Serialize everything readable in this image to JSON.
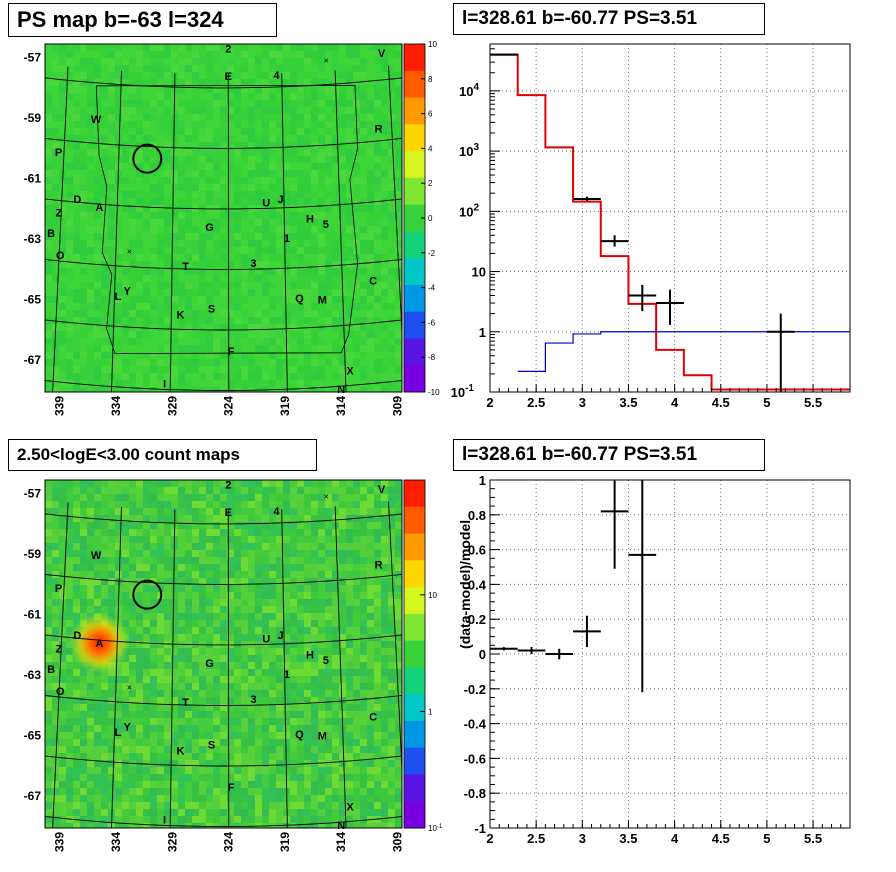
{
  "titles": {
    "map_top": "PS map b=-63 l=324",
    "spectrum_top": "l=328.61 b=-60.77 PS=3.51",
    "map_bottom": "2.50<logE<3.00 count maps",
    "spectrum_bottom": "l=328.61 b=-60.77 PS=3.51"
  },
  "colors": {
    "map_background_top": "#36d236",
    "map_background_bottom": "#3ec83e",
    "data_color": "#000000",
    "model_color": "#e00000",
    "background_model_color": "#0000cc"
  },
  "maps": {
    "y_ticks": [
      "-57",
      "-59",
      "-61",
      "-63",
      "-65",
      "-67"
    ],
    "x_ticks": [
      "339",
      "334",
      "329",
      "324",
      "319",
      "314",
      "309"
    ],
    "source_labels": [
      {
        "t": "2",
        "lon": 324,
        "lat": -56.7
      },
      {
        "t": "E",
        "lon": 324,
        "lat": -57.6
      },
      {
        "t": "4",
        "lon": 319.5,
        "lat": -57.6
      },
      {
        "t": "V",
        "lon": 309.6,
        "lat": -57.1
      },
      {
        "t": "W",
        "lon": 336.2,
        "lat": -59.2
      },
      {
        "t": "R",
        "lon": 310.2,
        "lat": -59.6
      },
      {
        "t": "P",
        "lon": 339.5,
        "lat": -60.4
      },
      {
        "t": "D",
        "lon": 337.6,
        "lat": -61.9
      },
      {
        "t": "A",
        "lon": 335.6,
        "lat": -62.1
      },
      {
        "t": "U",
        "lon": 320.6,
        "lat": -61.8
      },
      {
        "t": "J",
        "lon": 319.3,
        "lat": -61.7
      },
      {
        "t": "Z",
        "lon": 339.2,
        "lat": -62.4
      },
      {
        "t": "G",
        "lon": 325.7,
        "lat": -62.6
      },
      {
        "t": "H",
        "lon": 316.7,
        "lat": -62.4
      },
      {
        "t": "5",
        "lon": 315.3,
        "lat": -62.6
      },
      {
        "t": "1",
        "lon": 318.8,
        "lat": -63.0
      },
      {
        "t": "B",
        "lon": 339.8,
        "lat": -63.1
      },
      {
        "t": "O",
        "lon": 338.9,
        "lat": -63.8
      },
      {
        "t": "T",
        "lon": 327.8,
        "lat": -63.9
      },
      {
        "t": "3",
        "lon": 321.8,
        "lat": -63.8
      },
      {
        "t": "C",
        "lon": 311.3,
        "lat": -64.6
      },
      {
        "t": "L",
        "lon": 333.7,
        "lat": -65.0
      },
      {
        "t": "Y",
        "lon": 332.9,
        "lat": -64.8
      },
      {
        "t": "Q",
        "lon": 317.8,
        "lat": -65.0
      },
      {
        "t": "M",
        "lon": 315.8,
        "lat": -65.1
      },
      {
        "t": "K",
        "lon": 328.2,
        "lat": -65.5
      },
      {
        "t": "S",
        "lon": 325.5,
        "lat": -65.3
      },
      {
        "t": "F",
        "lon": 323.8,
        "lat": -66.7
      },
      {
        "t": "X",
        "lon": 313.6,
        "lat": -67.5
      },
      {
        "t": "N",
        "lon": 314.4,
        "lat": -68.1
      },
      {
        "t": "I",
        "lon": 329.5,
        "lat": -67.8
      }
    ],
    "cross_markers": [
      {
        "lon": 314.8,
        "lat": -57.2
      },
      {
        "lon": 332.8,
        "lat": -63.5
      }
    ],
    "circle": {
      "lon": 331.4,
      "lat": -60.4
    },
    "bright_source": {
      "lon": 335.6,
      "lat": -62.1
    }
  },
  "colorbars": {
    "top": {
      "labels": [
        "10",
        "8",
        "6",
        "4",
        "2",
        "0",
        "-2",
        "-4",
        "-6",
        "-8",
        "-10"
      ],
      "palette": [
        "#ff1f00",
        "#ff5a00",
        "#ff9a00",
        "#ffd700",
        "#d7f51e",
        "#7fe632",
        "#38d23a",
        "#14d27a",
        "#00c8c8",
        "#0096e6",
        "#1e50f0",
        "#5a14e6",
        "#7800e0"
      ]
    },
    "bottom": {
      "labels": [
        "10",
        "1",
        "10-1"
      ],
      "palette": [
        "#ff1f00",
        "#ff5a00",
        "#ff9a00",
        "#ffd700",
        "#d7f51e",
        "#7fe632",
        "#38d23a",
        "#14d27a",
        "#00c8c8",
        "#0096e6",
        "#1e50f0",
        "#5a14e6",
        "#7800e0"
      ]
    }
  },
  "chart_data": [
    {
      "type": "line",
      "title": "l=328.61 b=-60.77 PS=3.51",
      "xlabel": "",
      "ylabel": "",
      "xlim": [
        2,
        5.9
      ],
      "ylim": [
        0.1,
        60000
      ],
      "yscale": "log",
      "grid": true,
      "x_ticks": [
        "2",
        "2.5",
        "3",
        "3.5",
        "4",
        "4.5",
        "5",
        "5.5"
      ],
      "y_ticks": [
        "10^-1",
        "1",
        "10",
        "10^2",
        "10^3",
        "10^4"
      ],
      "series": [
        {
          "style": "step",
          "color": "#e00000",
          "bins": [
            [
              2.0,
              2.3,
              40000
            ],
            [
              2.3,
              2.6,
              8500
            ],
            [
              2.6,
              2.9,
              1150
            ],
            [
              2.9,
              3.2,
              145
            ],
            [
              3.2,
              3.5,
              18
            ],
            [
              3.5,
              3.8,
              2.9
            ],
            [
              3.8,
              4.1,
              0.5
            ],
            [
              4.1,
              4.4,
              0.19
            ],
            [
              4.4,
              5.9,
              0.11
            ]
          ]
        },
        {
          "style": "step",
          "color": "#0000cc",
          "bins": [
            [
              2.3,
              2.6,
              0.22
            ],
            [
              2.6,
              2.9,
              0.65
            ],
            [
              2.9,
              3.2,
              0.92
            ],
            [
              3.2,
              5.9,
              1.0
            ]
          ]
        },
        {
          "style": "points",
          "color": "#000000",
          "points": [
            {
              "x": 2.15,
              "xerr": 0.15,
              "y": 40000,
              "ylo": 40000,
              "yhi": 40000
            },
            {
              "x": 3.05,
              "xerr": 0.15,
              "y": 160,
              "ylo": 150,
              "yhi": 175
            },
            {
              "x": 3.35,
              "xerr": 0.15,
              "y": 32,
              "ylo": 26,
              "yhi": 40
            },
            {
              "x": 3.65,
              "xerr": 0.15,
              "y": 4.0,
              "ylo": 2.2,
              "yhi": 6.0
            },
            {
              "x": 3.95,
              "xerr": 0.15,
              "y": 3.0,
              "ylo": 1.3,
              "yhi": 5.0
            },
            {
              "x": 5.15,
              "xerr": 0.15,
              "y": 1.0,
              "ylo": 0.1,
              "yhi": 2.0
            }
          ]
        }
      ]
    },
    {
      "type": "scatter",
      "title": "l=328.61 b=-60.77 PS=3.51",
      "xlabel": "",
      "ylabel": "(data-model)/model",
      "xlim": [
        2,
        5.9
      ],
      "ylim": [
        -1,
        1
      ],
      "grid": true,
      "x_ticks": [
        "2",
        "2.5",
        "3",
        "3.5",
        "4",
        "4.5",
        "5",
        "5.5"
      ],
      "y_ticks": [
        "-1",
        "-0.8",
        "-0.6",
        "-0.4",
        "-0.2",
        "0",
        "0.2",
        "0.4",
        "0.6",
        "0.8",
        "1"
      ],
      "points": [
        {
          "x": 2.15,
          "xerr": 0.15,
          "y": 0.03,
          "ylo": 0.02,
          "yhi": 0.04
        },
        {
          "x": 2.45,
          "xerr": 0.15,
          "y": 0.02,
          "ylo": 0.0,
          "yhi": 0.04
        },
        {
          "x": 2.75,
          "xerr": 0.15,
          "y": 0.0,
          "ylo": -0.03,
          "yhi": 0.03
        },
        {
          "x": 3.05,
          "xerr": 0.15,
          "y": 0.13,
          "ylo": 0.04,
          "yhi": 0.22
        },
        {
          "x": 3.35,
          "xerr": 0.15,
          "y": 0.82,
          "ylo": 0.49,
          "yhi": 1.15
        },
        {
          "x": 3.65,
          "xerr": 0.15,
          "y": 0.57,
          "ylo": -0.22,
          "yhi": 1.36
        }
      ]
    }
  ]
}
